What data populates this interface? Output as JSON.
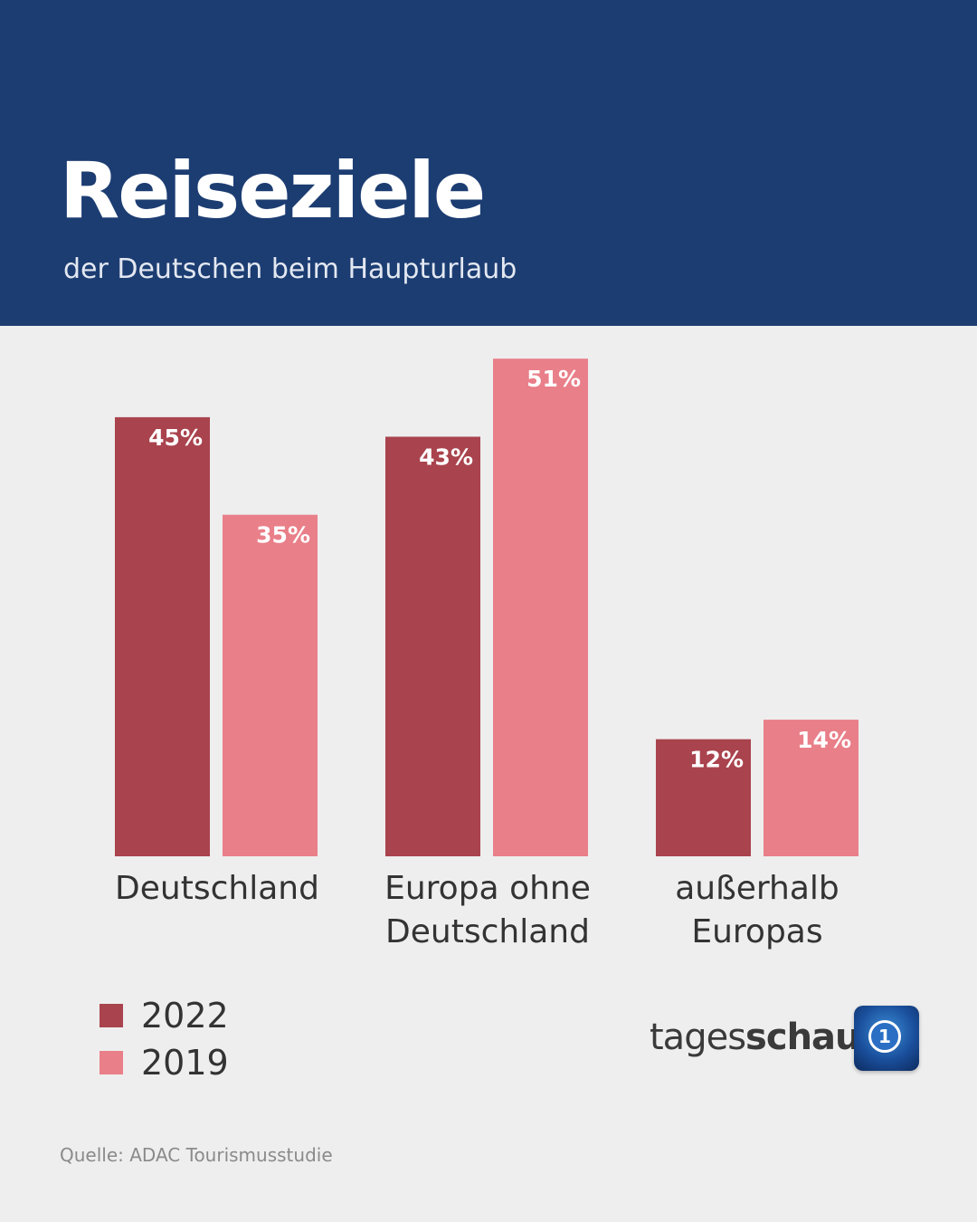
{
  "title": "Reiseziele",
  "subtitle": "der Deutschen beim Haupturlaub",
  "source": "Quelle: ADAC Tourismusstudie",
  "brand": {
    "light": "tages",
    "bold": "schau"
  },
  "colors": {
    "header": "#1c3d72",
    "s2022": "#a9434d",
    "s2019": "#e97f89",
    "background": "#eeeeee"
  },
  "chart_data": {
    "type": "bar",
    "categories": [
      [
        "Deutschland"
      ],
      [
        "Europa ohne",
        "Deutschland"
      ],
      [
        "außerhalb",
        "Europas"
      ]
    ],
    "series": [
      {
        "name": "2022",
        "values": [
          45,
          43,
          12
        ],
        "labels": [
          "45%",
          "43%",
          "12%"
        ]
      },
      {
        "name": "2019",
        "values": [
          35,
          51,
          14
        ],
        "labels": [
          "35%",
          "51%",
          "14%"
        ]
      }
    ],
    "unit": "%",
    "ylim": [
      0,
      51
    ],
    "grid": false,
    "legend_position": "bottom-left"
  }
}
